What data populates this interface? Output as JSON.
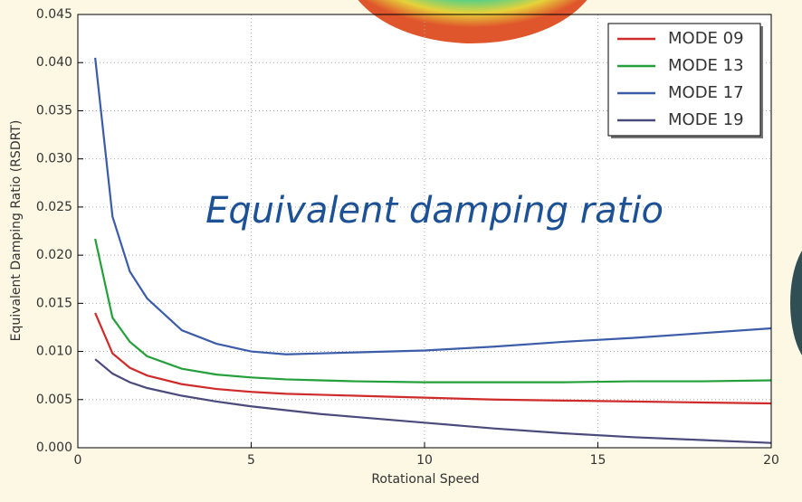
{
  "chart_data": {
    "type": "line",
    "annotation": "Equivalent damping ratio",
    "x_label": "Rotational Speed",
    "y_label": "Equivalent Damping Ratio (RSDRT)",
    "x": [
      0.5,
      1,
      1.5,
      2,
      3,
      4,
      5,
      6,
      7,
      8,
      10,
      12,
      14,
      16,
      18,
      20
    ],
    "series": [
      {
        "name": "MODE 09",
        "color": "#d02b2b",
        "values": [
          0.014,
          0.0098,
          0.0083,
          0.0075,
          0.0066,
          0.0061,
          0.0058,
          0.0056,
          0.0055,
          0.0054,
          0.0052,
          0.005,
          0.0049,
          0.0048,
          0.0047,
          0.0046
        ]
      },
      {
        "name": "MODE 13",
        "color": "#23a03a",
        "values": [
          0.0217,
          0.0135,
          0.011,
          0.0095,
          0.0082,
          0.0076,
          0.0073,
          0.0071,
          0.007,
          0.0069,
          0.0068,
          0.0068,
          0.0068,
          0.0069,
          0.0069,
          0.007
        ]
      },
      {
        "name": "MODE 17",
        "color": "#3b5ca8",
        "values": [
          0.0405,
          0.024,
          0.0183,
          0.0155,
          0.0122,
          0.0108,
          0.01,
          0.0097,
          0.0098,
          0.0099,
          0.0101,
          0.0105,
          0.011,
          0.0114,
          0.0119,
          0.0124
        ]
      },
      {
        "name": "MODE 19",
        "color": "#4a4a7c",
        "values": [
          0.0092,
          0.0077,
          0.0068,
          0.0062,
          0.0054,
          0.0048,
          0.0043,
          0.0039,
          0.0035,
          0.0032,
          0.0026,
          0.002,
          0.0015,
          0.0011,
          0.0008,
          0.0005
        ]
      }
    ],
    "xlim": [
      0,
      20
    ],
    "ylim": [
      0,
      0.045
    ],
    "xticks": [
      0,
      5,
      10,
      15,
      20
    ],
    "yticks": [
      {
        "value": 0,
        "label": "0.000"
      },
      0.005,
      {
        "value": 0.01,
        "label": "0.010"
      },
      0.015,
      {
        "value": 0.02,
        "label": "0.020"
      },
      0.025,
      {
        "value": 0.03,
        "label": "0.030"
      },
      0.035,
      {
        "value": 0.04,
        "label": "0.040"
      },
      0.045
    ],
    "grid": true,
    "legend": "upper right"
  }
}
